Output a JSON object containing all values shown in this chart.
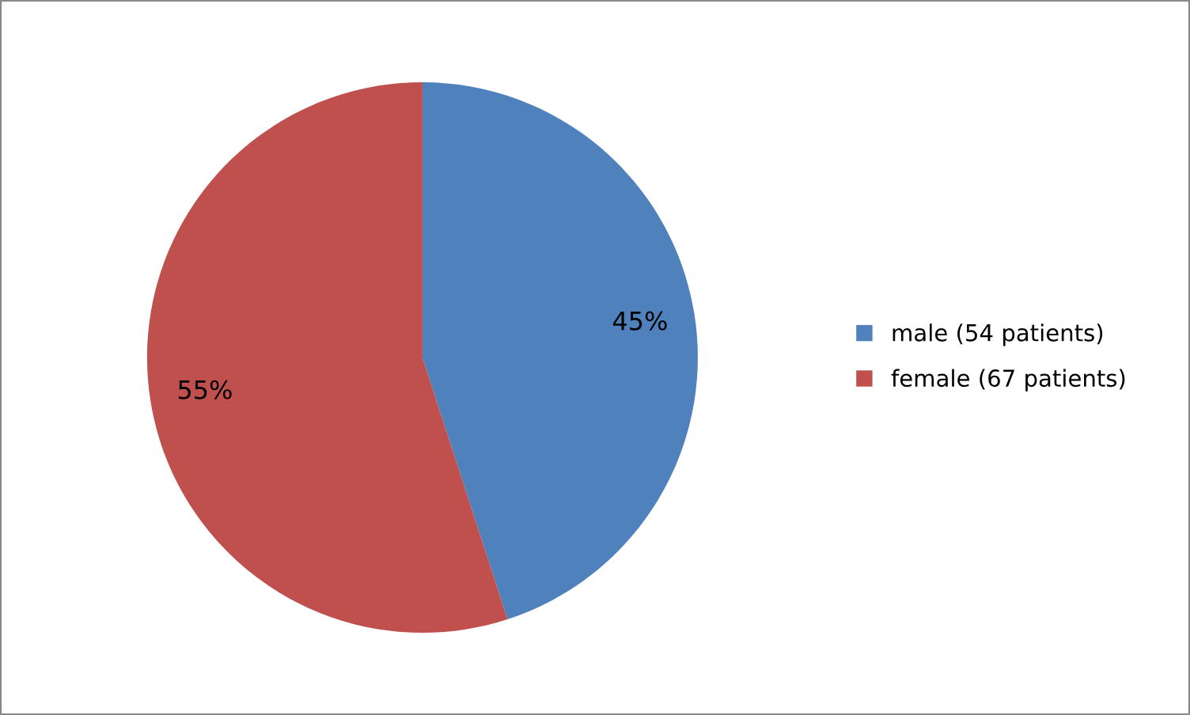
{
  "chart_data": {
    "type": "pie",
    "categories": [
      "male (54 patients)",
      "female (67 patients)"
    ],
    "values": [
      45,
      55
    ],
    "colors": [
      "#4f81bd",
      "#c0504d"
    ],
    "value_labels": [
      "45%",
      "55%"
    ],
    "legend": "right"
  }
}
